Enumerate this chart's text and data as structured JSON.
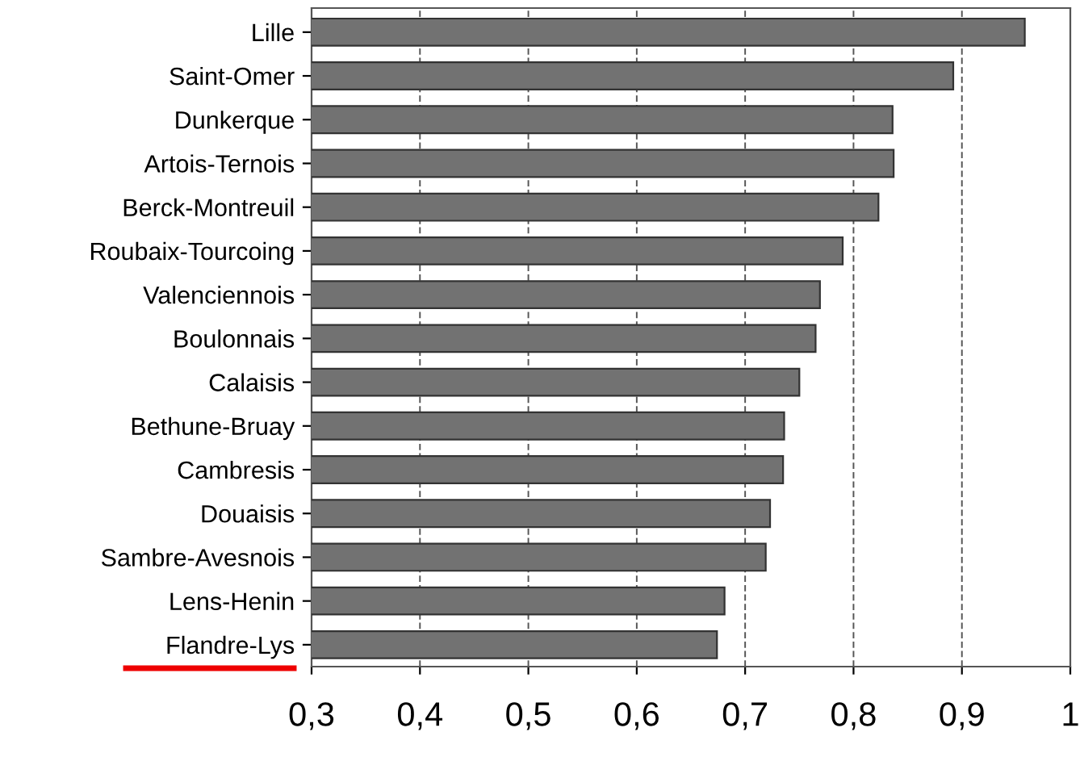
{
  "chart_data": {
    "type": "bar",
    "orientation": "horizontal",
    "categories": [
      "Lille",
      "Saint-Omer",
      "Dunkerque",
      "Artois-Ternois",
      "Berck-Montreuil",
      "Roubaix-Tourcoing",
      "Valenciennois",
      "Boulonnais",
      "Calaisis",
      "Bethune-Bruay",
      "Cambresis",
      "Douaisis",
      "Sambre-Avesnois",
      "Lens-Henin",
      "Flandre-Lys"
    ],
    "values": [
      0.958,
      0.892,
      0.836,
      0.837,
      0.823,
      0.79,
      0.769,
      0.765,
      0.75,
      0.736,
      0.735,
      0.723,
      0.719,
      0.681,
      0.674
    ],
    "color": "#727272",
    "xlim": [
      0.3,
      1
    ],
    "xticks": [
      {
        "value": 0.3,
        "label": "0,3"
      },
      {
        "value": 0.4,
        "label": "0,4"
      },
      {
        "value": 0.5,
        "label": "0,5"
      },
      {
        "value": 0.6,
        "label": "0,6"
      },
      {
        "value": 0.7,
        "label": "0,7"
      },
      {
        "value": 0.8,
        "label": "0,8"
      },
      {
        "value": 0.9,
        "label": "0,9"
      },
      {
        "value": 1,
        "label": "1"
      }
    ],
    "grid": "x"
  }
}
